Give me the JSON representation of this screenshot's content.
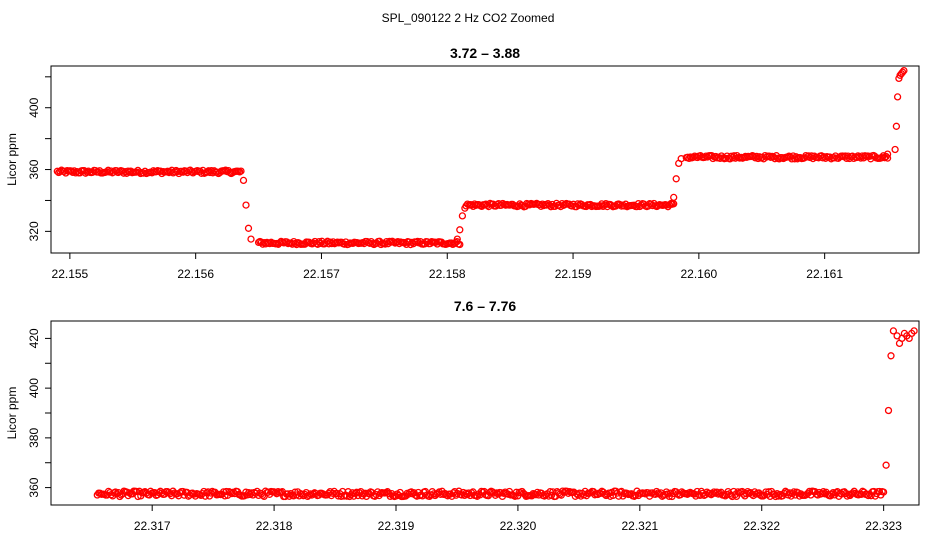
{
  "figure_title": "SPL_090122  2 Hz CO2 Zoomed",
  "colors": {
    "points": "#ff0000",
    "axes": "#000000",
    "background": "#ffffff"
  },
  "chart_data": [
    {
      "type": "scatter",
      "title": "3.72 – 3.88",
      "xlabel": "",
      "ylabel": "Licor ppm",
      "xlim": [
        22.15485,
        22.16175
      ],
      "ylim": [
        306,
        427
      ],
      "xticks": [
        22.155,
        22.156,
        22.157,
        22.158,
        22.159,
        22.16,
        22.161
      ],
      "xtick_labels": [
        "22.155",
        "22.156",
        "22.157",
        "22.158",
        "22.159",
        "22.160",
        "22.161"
      ],
      "yticks": [
        320,
        340,
        360,
        380,
        400,
        420
      ],
      "ytick_labels": [
        "320",
        "",
        "360",
        "",
        "400",
        ""
      ],
      "grid": false,
      "series": [
        {
          "marker": "open-circle",
          "color": "#ff0000",
          "segments": [
            {
              "x": [
                22.1549,
                22.15635
              ],
              "y": 358.5
            },
            {
              "x": [
                22.1565,
                22.1581
              ],
              "y": 312.5
            },
            {
              "x": [
                22.15815,
                22.1598
              ],
              "y": 337.0
            },
            {
              "x": [
                22.1599,
                22.1615
              ],
              "y": 368.0
            }
          ],
          "transitions": [
            {
              "x": 22.15636,
              "y": 359
            },
            {
              "x": 22.15638,
              "y": 353
            },
            {
              "x": 22.1564,
              "y": 337
            },
            {
              "x": 22.15642,
              "y": 322
            },
            {
              "x": 22.15644,
              "y": 315
            },
            {
              "x": 22.15808,
              "y": 315
            },
            {
              "x": 22.1581,
              "y": 321
            },
            {
              "x": 22.15812,
              "y": 330
            },
            {
              "x": 22.15814,
              "y": 335
            },
            {
              "x": 22.15978,
              "y": 338
            },
            {
              "x": 22.1598,
              "y": 342
            },
            {
              "x": 22.15982,
              "y": 354
            },
            {
              "x": 22.15984,
              "y": 364
            },
            {
              "x": 22.15986,
              "y": 367
            },
            {
              "x": 22.1615,
              "y": 370
            },
            {
              "x": 22.16156,
              "y": 373
            },
            {
              "x": 22.16157,
              "y": 388
            },
            {
              "x": 22.16158,
              "y": 407
            },
            {
              "x": 22.16159,
              "y": 419
            },
            {
              "x": 22.1616,
              "y": 421
            },
            {
              "x": 22.16161,
              "y": 422
            },
            {
              "x": 22.16162,
              "y": 423
            },
            {
              "x": 22.16163,
              "y": 424
            }
          ]
        }
      ]
    },
    {
      "type": "scatter",
      "title": "7.6 – 7.76",
      "xlabel": "",
      "ylabel": "Licor ppm",
      "xlim": [
        22.31617,
        22.32329
      ],
      "ylim": [
        353,
        427
      ],
      "xticks": [
        22.317,
        22.318,
        22.319,
        22.32,
        22.321,
        22.322,
        22.323
      ],
      "xtick_labels": [
        "22.317",
        "22.318",
        "22.319",
        "22.320",
        "22.321",
        "22.322",
        "22.323"
      ],
      "yticks": [
        360,
        370,
        380,
        390,
        400,
        410,
        420
      ],
      "ytick_labels": [
        "360",
        "",
        "380",
        "",
        "400",
        "",
        "420"
      ],
      "grid": false,
      "series": [
        {
          "marker": "open-circle",
          "color": "#ff0000",
          "segments": [
            {
              "x": [
                22.31655,
                22.323
              ],
              "y": 357.5
            }
          ],
          "transitions": [
            {
              "x": 22.32302,
              "y": 369
            },
            {
              "x": 22.32304,
              "y": 391
            },
            {
              "x": 22.32306,
              "y": 413
            },
            {
              "x": 22.32308,
              "y": 423
            },
            {
              "x": 22.32311,
              "y": 421
            },
            {
              "x": 22.32313,
              "y": 418
            },
            {
              "x": 22.32315,
              "y": 420
            },
            {
              "x": 22.32317,
              "y": 422
            },
            {
              "x": 22.32319,
              "y": 421
            },
            {
              "x": 22.32321,
              "y": 420
            },
            {
              "x": 22.32323,
              "y": 422
            },
            {
              "x": 22.32325,
              "y": 423
            }
          ]
        }
      ]
    }
  ]
}
